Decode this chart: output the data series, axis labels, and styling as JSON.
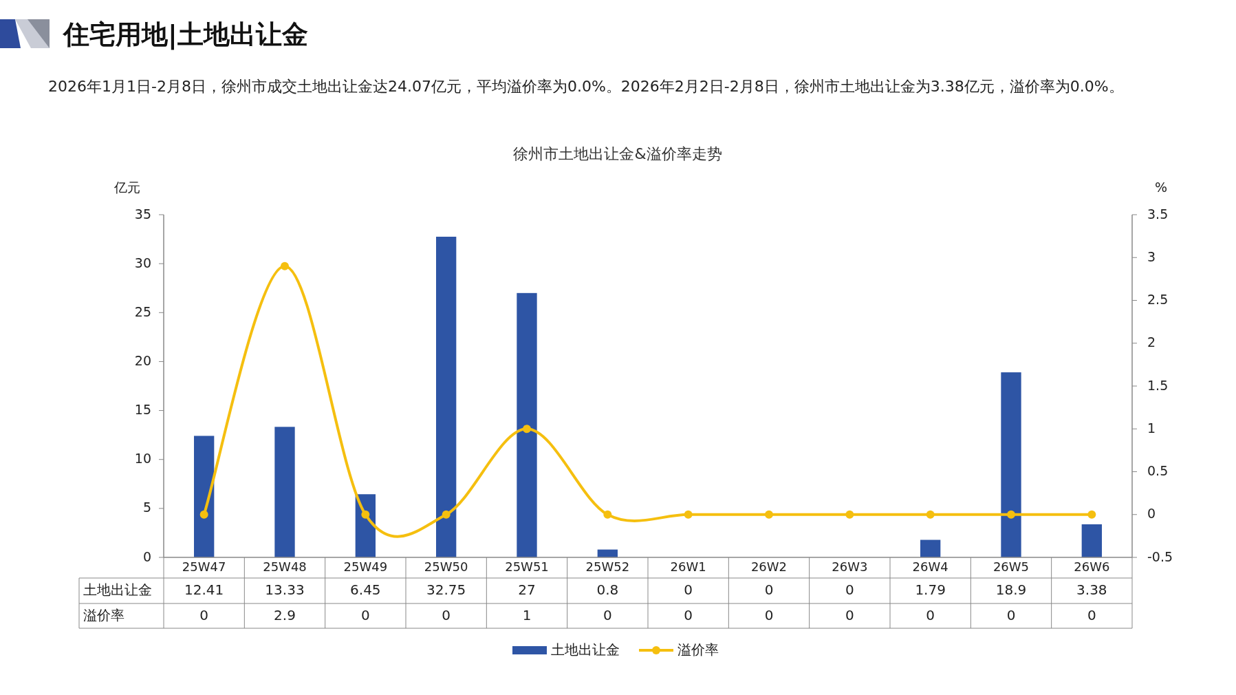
{
  "chart_data": {
    "type": "bar",
    "title": "住宅用地|土地出让金",
    "subtitle": "徐州市土地出让金&溢价率走势",
    "annotations": [
      "2026年1月1日-2月8日，徐州市成交土地出让金达24.07亿元，平均溢价率为0.0%。2026年2月2日-2月8日，徐州市土地出让金为3.38亿元，溢价率为0.0%。"
    ],
    "ylabel": "亿元",
    "y2label": "%",
    "categories": [
      "25W47",
      "25W48",
      "25W49",
      "25W50",
      "25W51",
      "25W52",
      "26W1",
      "26W2",
      "26W3",
      "26W4",
      "26W5",
      "26W6"
    ],
    "series": [
      {
        "name": "土地出让金",
        "color": "#2e55a5",
        "values": [
          12.41,
          13.33,
          6.45,
          32.75,
          27,
          0.8,
          0,
          0,
          0,
          1.79,
          18.9,
          3.38
        ]
      },
      {
        "name": "溢价率",
        "type": "line",
        "axis": "y2",
        "color": "#f5bf0f",
        "marker": "circle",
        "values": [
          0,
          2.9,
          0,
          0,
          1,
          0,
          0,
          0,
          0,
          0,
          0,
          0
        ]
      }
    ],
    "ylim": [
      0,
      35
    ],
    "yticks": [
      0,
      5,
      10,
      15,
      20,
      25,
      30,
      35
    ],
    "y2lim": [
      -0.5,
      3.5
    ],
    "y2ticks": [
      -0.5,
      0,
      0.5,
      1,
      1.5,
      2,
      2.5,
      3,
      3.5
    ],
    "data_labels": true,
    "legend": "bottom",
    "grid": false
  }
}
